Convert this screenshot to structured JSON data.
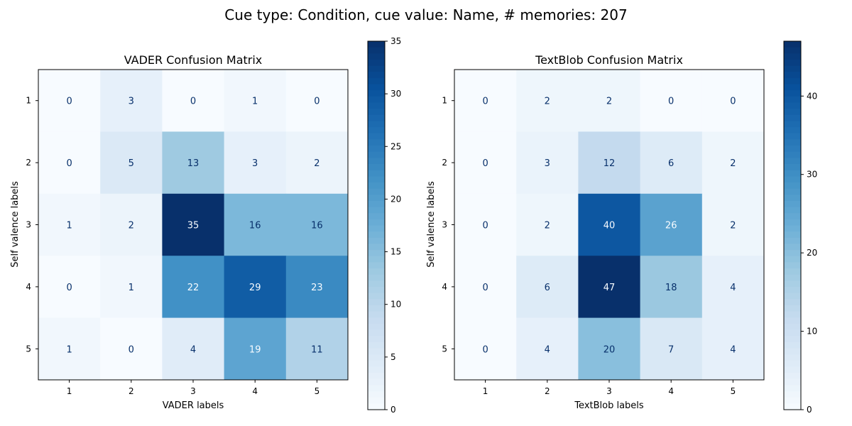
{
  "suptitle": "Cue type: Condition, cue value: Name, # memories: 207",
  "chart_data": [
    {
      "type": "heatmap",
      "title": "VADER Confusion Matrix",
      "xlabel": "VADER labels",
      "ylabel": "Self valence labels",
      "x_categories": [
        "1",
        "2",
        "3",
        "4",
        "5"
      ],
      "y_categories": [
        "1",
        "2",
        "3",
        "4",
        "5"
      ],
      "values": [
        [
          0,
          3,
          0,
          1,
          0
        ],
        [
          0,
          5,
          13,
          3,
          2
        ],
        [
          1,
          2,
          35,
          16,
          16
        ],
        [
          0,
          1,
          22,
          29,
          23
        ],
        [
          1,
          0,
          4,
          19,
          11
        ]
      ],
      "colormap": "Blues",
      "colorbar": {
        "min": 0,
        "max": 35,
        "ticks": [
          0,
          5,
          10,
          15,
          20,
          25,
          30,
          35
        ]
      }
    },
    {
      "type": "heatmap",
      "title": "TextBlob Confusion Matrix",
      "xlabel": "TextBlob labels",
      "ylabel": "Self valence labels",
      "x_categories": [
        "1",
        "2",
        "3",
        "4",
        "5"
      ],
      "y_categories": [
        "1",
        "2",
        "3",
        "4",
        "5"
      ],
      "values": [
        [
          0,
          2,
          2,
          0,
          0
        ],
        [
          0,
          3,
          12,
          6,
          2
        ],
        [
          0,
          2,
          40,
          26,
          2
        ],
        [
          0,
          6,
          47,
          18,
          4
        ],
        [
          0,
          4,
          20,
          7,
          4
        ]
      ],
      "colormap": "Blues",
      "colorbar": {
        "min": 0,
        "max": 47,
        "ticks": [
          0,
          10,
          20,
          30,
          40
        ]
      }
    }
  ]
}
